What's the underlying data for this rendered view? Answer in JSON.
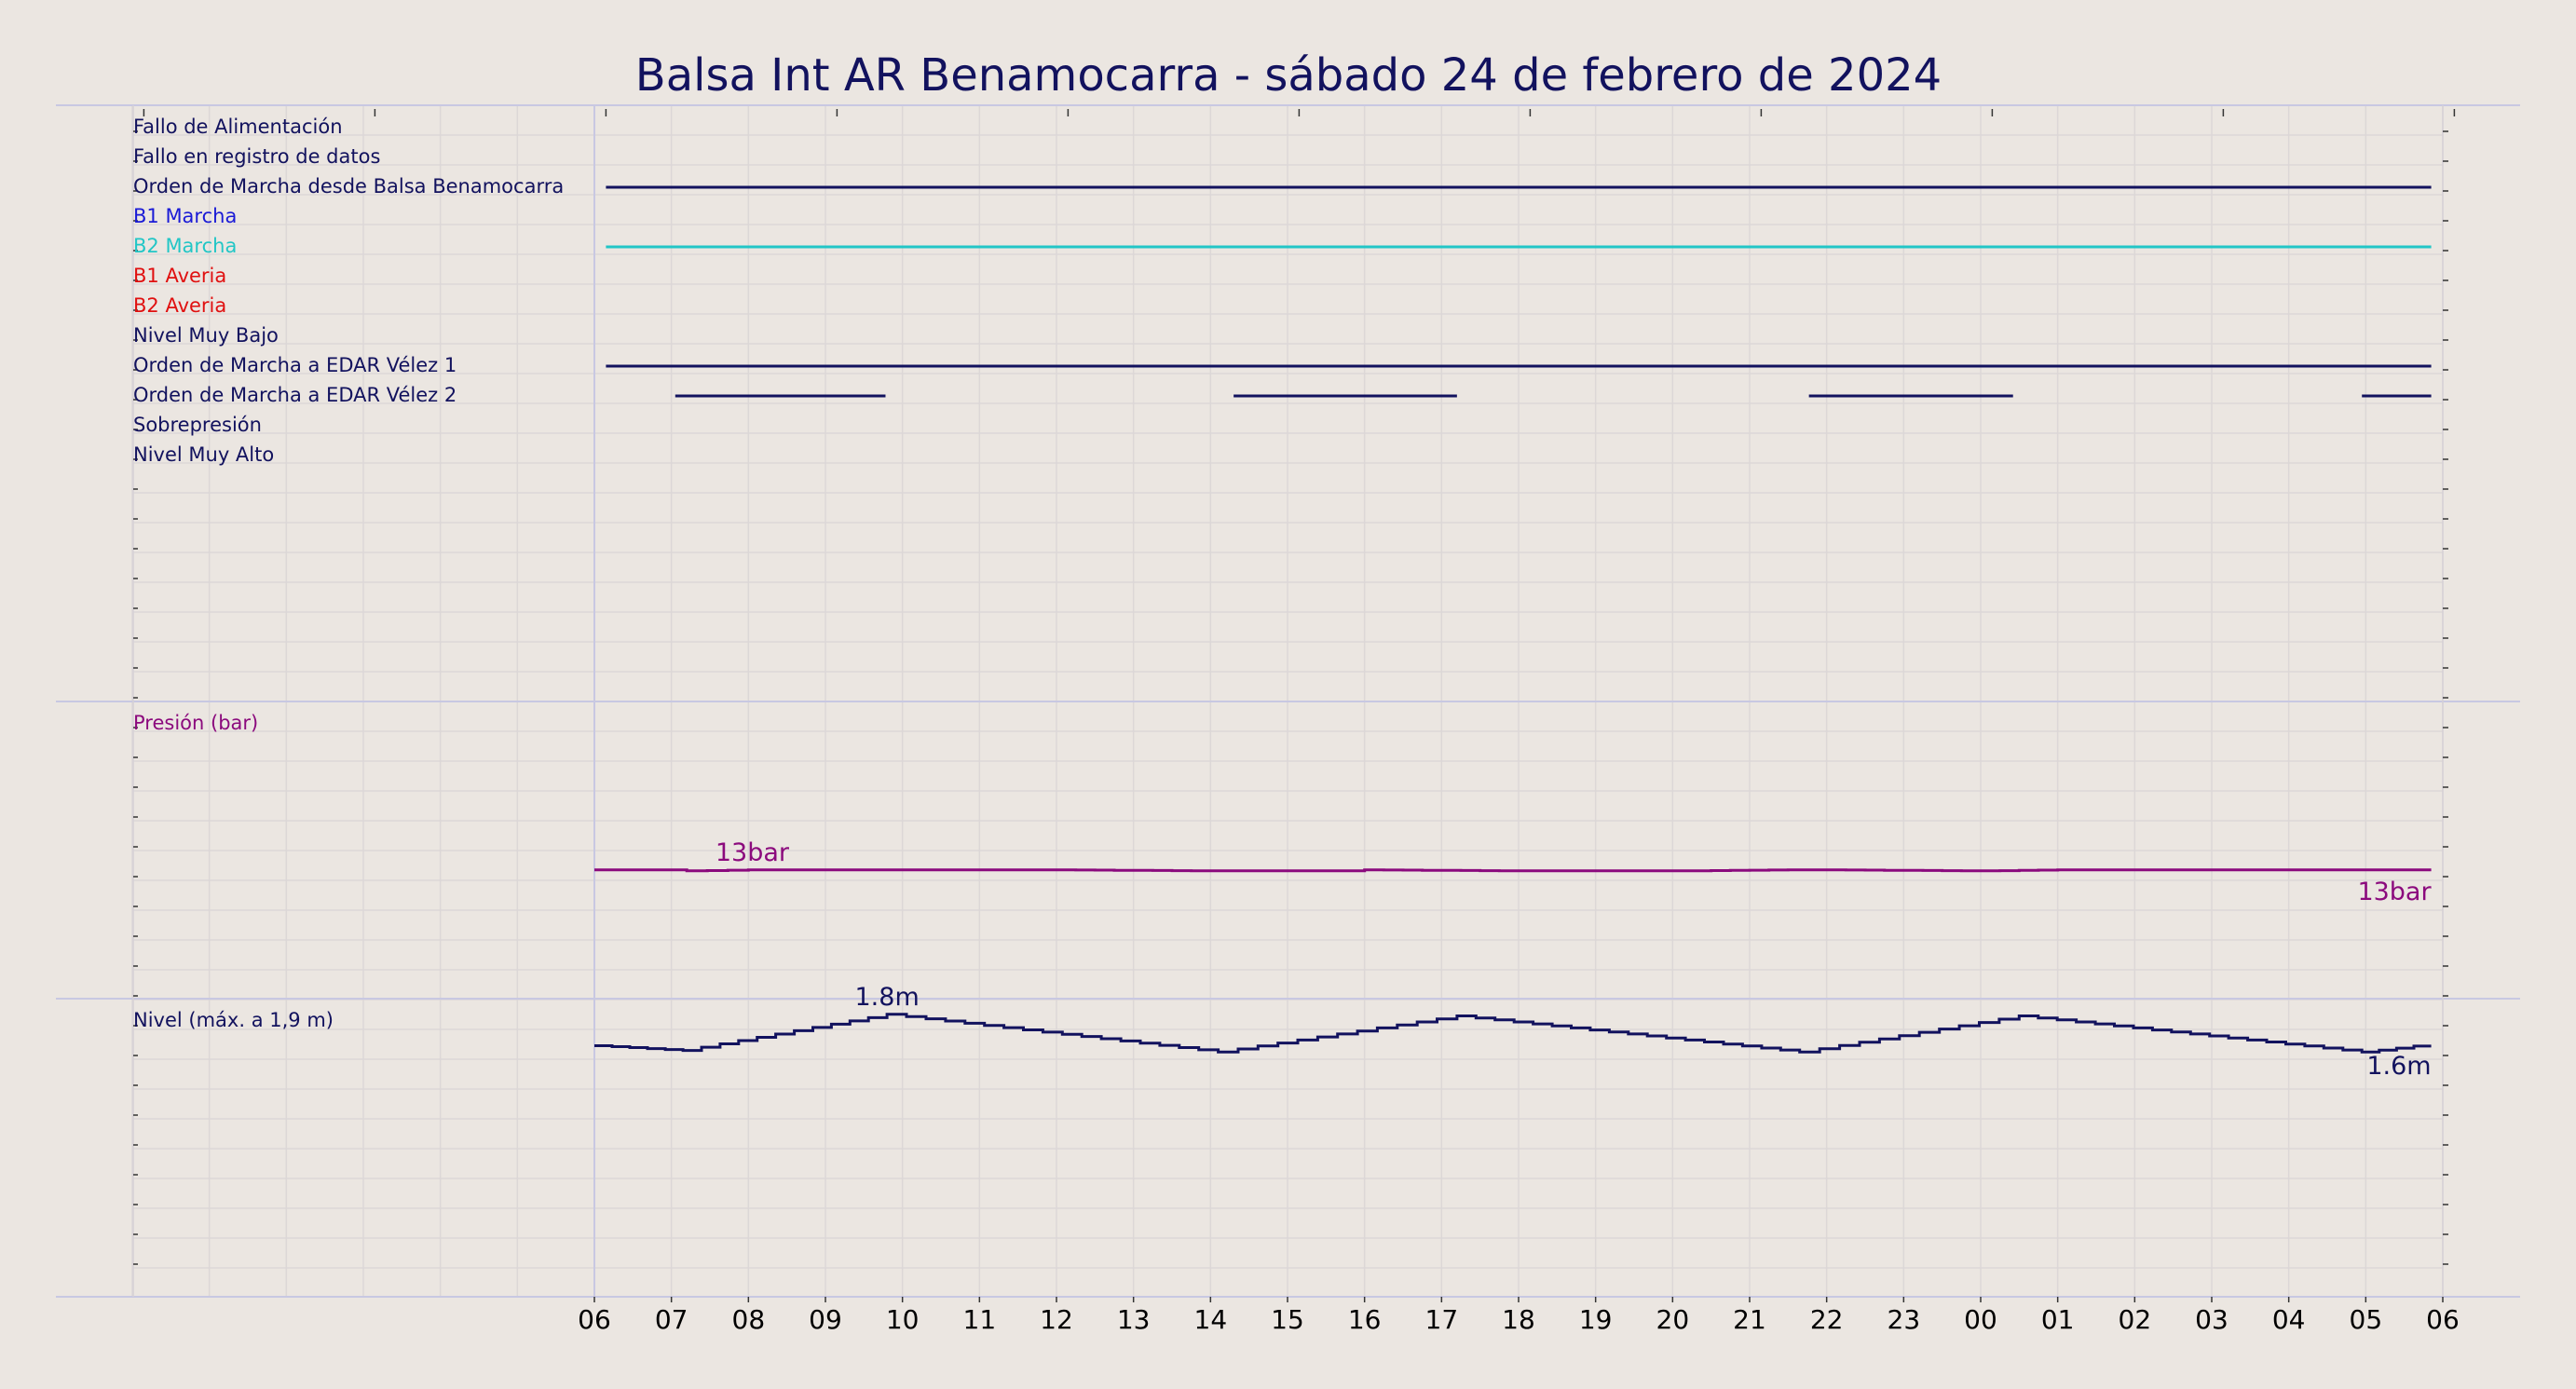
{
  "chart_data": {
    "type": "line",
    "title": "Balsa Int AR Benamocarra   -   sábado 24 de febrero de 2024",
    "x_ticks": [
      "06",
      "07",
      "08",
      "09",
      "10",
      "11",
      "12",
      "13",
      "14",
      "15",
      "16",
      "17",
      "18",
      "19",
      "20",
      "21",
      "22",
      "23",
      "00",
      "01",
      "02",
      "03",
      "04",
      "05",
      "06"
    ],
    "x_range_hours": [
      0,
      24
    ],
    "colors": {
      "navy": "#12125e",
      "blue": "#1a1ad6",
      "cyan": "#22c6c6",
      "red": "#e01010",
      "purple": "#8b0a7d",
      "background": "#ebe6e1"
    },
    "digital_panel": {
      "signals": [
        {
          "name": "Fallo de Alimentación",
          "color": "#12125e",
          "on_intervals": []
        },
        {
          "name": "Fallo en registro de datos",
          "color": "#12125e",
          "on_intervals": []
        },
        {
          "name": "Orden de Marcha desde Balsa Benamocarra",
          "color": "#12125e",
          "on_intervals": [
            [
              0.15,
              23.85
            ]
          ]
        },
        {
          "name": "B1 Marcha",
          "color": "#1a1ad6",
          "on_intervals": []
        },
        {
          "name": "B2 Marcha",
          "color": "#22c6c6",
          "on_intervals": [
            [
              0.15,
              23.85
            ]
          ]
        },
        {
          "name": "B1 Averia",
          "color": "#e01010",
          "on_intervals": []
        },
        {
          "name": "B2 Averia",
          "color": "#e01010",
          "on_intervals": []
        },
        {
          "name": "Nivel Muy Bajo",
          "color": "#12125e",
          "on_intervals": []
        },
        {
          "name": "Orden de Marcha a EDAR Vélez 1",
          "color": "#12125e",
          "on_intervals": [
            [
              0.15,
              23.85
            ]
          ]
        },
        {
          "name": "Orden de Marcha a EDAR Vélez 2",
          "color": "#12125e",
          "on_intervals": [
            [
              1.05,
              3.78
            ],
            [
              8.3,
              11.2
            ],
            [
              15.77,
              18.42
            ],
            [
              22.95,
              23.85
            ]
          ]
        },
        {
          "name": "Sobrepresión",
          "color": "#12125e",
          "on_intervals": []
        },
        {
          "name": "Nivel Muy Alto",
          "color": "#12125e",
          "on_intervals": []
        }
      ]
    },
    "pressure_panel": {
      "label": "Presión (bar)",
      "unit": "bar",
      "ylim": [
        0,
        30
      ],
      "series": {
        "x": [
          0,
          1.0,
          1.2,
          2.0,
          4.0,
          6.0,
          8.0,
          9.8,
          10.0,
          12.0,
          14.0,
          15.5,
          16.0,
          18.0,
          19.0,
          20.0,
          22.0,
          23.85
        ],
        "values": [
          13.0,
          13.0,
          12.9,
          13.0,
          13.0,
          13.0,
          12.9,
          12.9,
          13.0,
          12.9,
          12.9,
          13.0,
          13.0,
          12.9,
          13.0,
          13.0,
          13.0,
          13.0
        ]
      },
      "annotations": [
        {
          "text": "13bar",
          "x": 2.05,
          "y": 13.0
        },
        {
          "text": "13bar",
          "x": 23.85,
          "y": 13.0
        }
      ]
    },
    "level_panel": {
      "label": "Nivel (máx. a 1,9 m)",
      "unit": "m",
      "ylim": [
        0,
        1.9
      ],
      "series": {
        "x": [
          0,
          1.15,
          3.8,
          8.1,
          11.2,
          15.65,
          18.5,
          22.95,
          23.85
        ],
        "values": [
          1.6,
          1.57,
          1.8,
          1.56,
          1.79,
          1.56,
          1.79,
          1.56,
          1.61
        ]
      },
      "annotations": [
        {
          "text": "1.8m",
          "x": 3.8,
          "y": 1.8
        },
        {
          "text": "1.6m",
          "x": 23.85,
          "y": 1.61
        }
      ]
    }
  }
}
